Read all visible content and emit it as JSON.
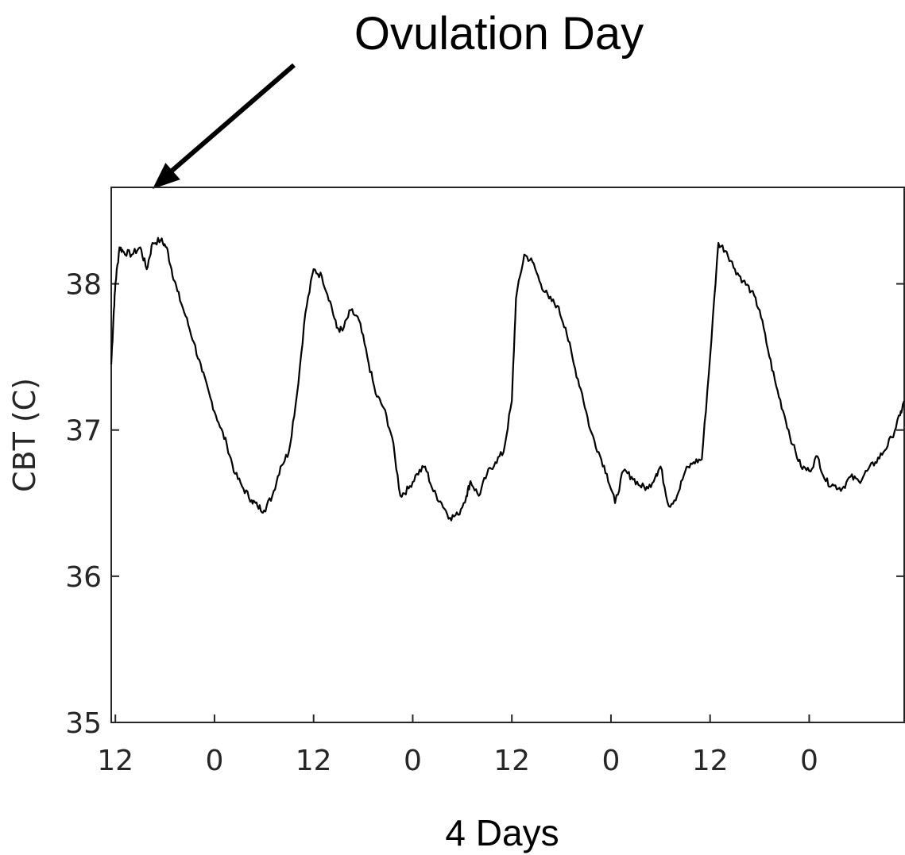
{
  "chart_data": {
    "type": "line",
    "title": "",
    "xlabel": "4 Days",
    "ylabel": "CBT (C)",
    "ylim": [
      35,
      38.66
    ],
    "xlim": [
      11.5,
      107.5
    ],
    "x_tick_values": [
      12,
      24,
      36,
      48,
      60,
      72,
      84,
      96
    ],
    "x_tick_labels": [
      "12",
      "0",
      "12",
      "0",
      "12",
      "0",
      "12",
      "0"
    ],
    "y_tick_values": [
      35,
      36,
      37,
      38
    ],
    "y_tick_labels": [
      "35",
      "36",
      "37",
      "38"
    ],
    "grid": false,
    "annotation": {
      "text": "Ovulation Day",
      "points_to_x": 16.5
    },
    "series": [
      {
        "name": "",
        "color": "#000000",
        "x": [
          11.5,
          11.8,
          12.0,
          12.5,
          13.0,
          14.0,
          15.0,
          15.8,
          16.5,
          17.5,
          18.2,
          18.8,
          19.5,
          20.5,
          21.5,
          22.5,
          23.5,
          24.5,
          25.5,
          26.5,
          27.5,
          28.5,
          29.2,
          30.0,
          31.0,
          32.0,
          33.0,
          34.0,
          35.0,
          36.0,
          37.0,
          38.0,
          38.8,
          39.5,
          40.5,
          41.5,
          42.5,
          43.5,
          44.5,
          45.5,
          46.5,
          47.5,
          48.5,
          49.5,
          50.5,
          51.5,
          52.5,
          53.5,
          54.5,
          55.0,
          56.0,
          57.0,
          58.0,
          59.0,
          60.0,
          60.5,
          61.5,
          62.5,
          63.5,
          64.5,
          65.5,
          66.5,
          67.5,
          68.5,
          69.5,
          70.5,
          71.5,
          72.5,
          73.5,
          74.5,
          75.5,
          76.5,
          77.5,
          78.0,
          79.0,
          80.0,
          81.0,
          82.0,
          83.0,
          84.0,
          85.0,
          86.0,
          87.0,
          88.0,
          89.0,
          90.0,
          91.0,
          92.0,
          93.0,
          94.0,
          95.0,
          96.0,
          97.0,
          98.0,
          99.0,
          100.0,
          101.0,
          102.0,
          103.0,
          104.0,
          105.0,
          106.0,
          107.0,
          107.5
        ],
        "y": [
          37.45,
          37.8,
          38.0,
          38.25,
          38.22,
          38.2,
          38.25,
          38.1,
          38.28,
          38.3,
          38.25,
          38.1,
          37.95,
          37.78,
          37.6,
          37.4,
          37.22,
          37.05,
          36.9,
          36.7,
          36.6,
          36.52,
          36.48,
          36.45,
          36.55,
          36.75,
          36.85,
          37.25,
          37.8,
          38.1,
          38.05,
          37.88,
          37.7,
          37.68,
          37.82,
          37.75,
          37.5,
          37.25,
          37.15,
          36.95,
          36.55,
          36.6,
          36.7,
          36.75,
          36.58,
          36.5,
          36.4,
          36.42,
          36.55,
          36.65,
          36.55,
          36.7,
          36.78,
          36.85,
          37.2,
          37.9,
          38.2,
          38.15,
          38.0,
          37.9,
          37.85,
          37.7,
          37.45,
          37.25,
          37.0,
          36.85,
          36.7,
          36.5,
          36.72,
          36.68,
          36.62,
          36.6,
          36.7,
          36.75,
          36.48,
          36.55,
          36.72,
          36.78,
          36.8,
          37.5,
          38.28,
          38.22,
          38.1,
          38.02,
          37.95,
          37.82,
          37.55,
          37.3,
          37.1,
          36.9,
          36.75,
          36.72,
          36.82,
          36.65,
          36.62,
          36.6,
          36.68,
          36.65,
          36.72,
          36.78,
          36.85,
          36.95,
          37.1,
          37.2
        ]
      }
    ]
  }
}
